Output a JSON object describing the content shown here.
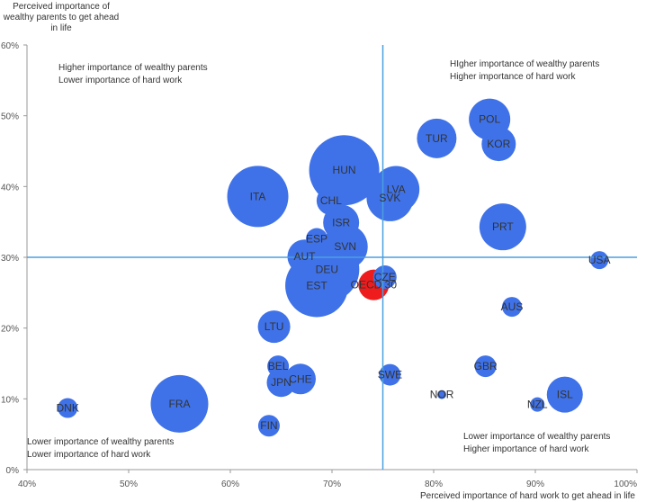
{
  "chart_data": {
    "type": "scatter",
    "ylabel_lines": [
      "Perceived importance of",
      "wealthy parents to get ahead",
      "in life"
    ],
    "xlabel": "Perceived importance of hard work to get ahead in life",
    "xlim": [
      40,
      100
    ],
    "ylim": [
      0,
      60
    ],
    "xticks": [
      "40%",
      "50%",
      "60%",
      "70%",
      "80%",
      "90%",
      "100%"
    ],
    "yticks": [
      "0%",
      "10%",
      "20%",
      "30%",
      "40%",
      "50%",
      "60%"
    ],
    "reference_x": 75,
    "reference_y": 30,
    "colors": {
      "bubble": "#3f72e8",
      "highlight": "#ee1c1c",
      "reference_line": "#4a9fe0"
    },
    "quadrant_labels": {
      "top_left": [
        "Higher importance of wealthy parents",
        "Lower importance of hard work"
      ],
      "top_right": [
        "HIgher importance of wealthy parents",
        "Higher importance of hard work"
      ],
      "bottom_left": [
        "Lower importance of wealthy parents",
        "Lower importance of hard work"
      ],
      "bottom_right": [
        "Lower importance of wealthy parents",
        "Higher importance of hard work"
      ]
    },
    "points": [
      {
        "label": "DNK",
        "x": 44,
        "y": 8.7,
        "size": 1.1
      },
      {
        "label": "FRA",
        "x": 55,
        "y": 9.3,
        "size": 3.2
      },
      {
        "label": "FIN",
        "x": 63.8,
        "y": 6.2,
        "size": 1.2
      },
      {
        "label": "BEL",
        "x": 64.7,
        "y": 14.6,
        "size": 1.2
      },
      {
        "label": "JPN",
        "x": 65,
        "y": 12.3,
        "size": 1.6
      },
      {
        "label": "CHE",
        "x": 66.9,
        "y": 12.8,
        "size": 1.7
      },
      {
        "label": "LTU",
        "x": 64.3,
        "y": 20.2,
        "size": 1.8
      },
      {
        "label": "ITA",
        "x": 62.7,
        "y": 38.6,
        "size": 3.4
      },
      {
        "label": "AUT",
        "x": 67.3,
        "y": 30.1,
        "size": 1.9
      },
      {
        "label": "ESP",
        "x": 68.5,
        "y": 32.6,
        "size": 1.2
      },
      {
        "label": "EST",
        "x": 68.5,
        "y": 26.0,
        "size": 3.5
      },
      {
        "label": "DEU",
        "x": 69.5,
        "y": 28.3,
        "size": 3.6
      },
      {
        "label": "HUN",
        "x": 71.2,
        "y": 42.3,
        "size": 3.9
      },
      {
        "label": "CHL",
        "x": 69.9,
        "y": 38.0,
        "size": 1.6
      },
      {
        "label": "ISR",
        "x": 70.9,
        "y": 34.9,
        "size": 2.0
      },
      {
        "label": "SVN",
        "x": 71.3,
        "y": 31.5,
        "size": 2.5
      },
      {
        "label": "LVA",
        "x": 76.3,
        "y": 39.6,
        "size": 2.6
      },
      {
        "label": "SVK",
        "x": 75.7,
        "y": 38.4,
        "size": 2.6
      },
      {
        "label": "CZE",
        "x": 75.2,
        "y": 27.2,
        "size": 1.3
      },
      {
        "label": "OECD 30",
        "x": 74.1,
        "y": 26.1,
        "size": 1.7,
        "highlight": true
      },
      {
        "label": "SWE",
        "x": 75.7,
        "y": 13.4,
        "size": 1.2
      },
      {
        "label": "TUR",
        "x": 80.3,
        "y": 46.8,
        "size": 2.2
      },
      {
        "label": "POL",
        "x": 85.5,
        "y": 49.5,
        "size": 2.3
      },
      {
        "label": "KOR",
        "x": 86.4,
        "y": 46.0,
        "size": 1.9
      },
      {
        "label": "PRT",
        "x": 86.8,
        "y": 34.3,
        "size": 2.6
      },
      {
        "label": "USA",
        "x": 96.3,
        "y": 29.6,
        "size": 1.0
      },
      {
        "label": "AUS",
        "x": 87.7,
        "y": 23.0,
        "size": 1.1
      },
      {
        "label": "GBR",
        "x": 85.1,
        "y": 14.6,
        "size": 1.2
      },
      {
        "label": "NOR",
        "x": 80.8,
        "y": 10.6,
        "size": 0.5
      },
      {
        "label": "NZL",
        "x": 90.2,
        "y": 9.2,
        "size": 0.8
      },
      {
        "label": "ISL",
        "x": 92.9,
        "y": 10.6,
        "size": 2.0
      }
    ]
  }
}
